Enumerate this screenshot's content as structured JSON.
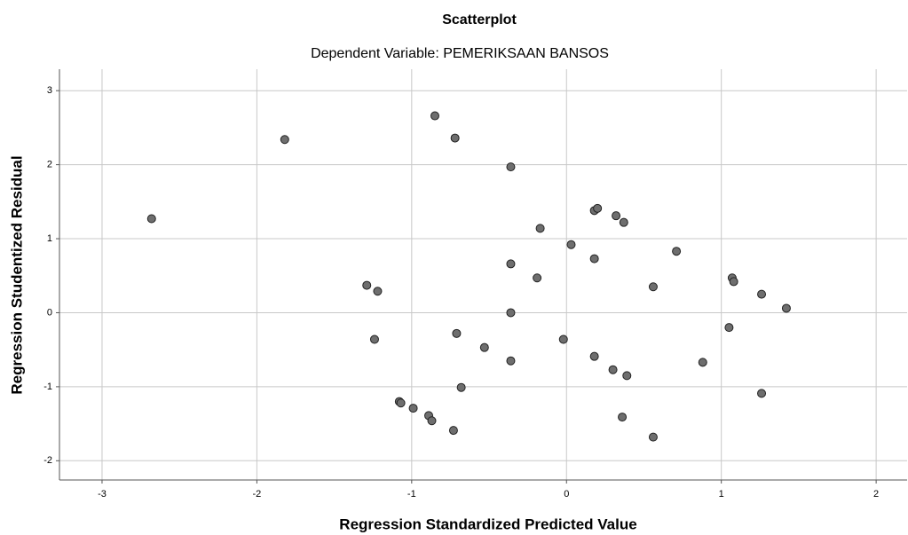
{
  "chart_data": {
    "type": "scatter",
    "title": "Scatterplot",
    "subtitle": "Dependent Variable: PEMERIKSAAN BANSOS",
    "x_label": "Regression Standardized Predicted Value",
    "y_label": "Regression Studentized Residual",
    "xlim": [
      -3.275,
      2.2
    ],
    "ylim": [
      -2.26,
      3.29
    ],
    "xticks": [
      -3,
      -2,
      -1,
      0,
      1,
      2
    ],
    "yticks": [
      -2,
      -1,
      0,
      1,
      2,
      3
    ],
    "grid": true,
    "color": "#6e6e6e",
    "x": [
      -2.68,
      -1.82,
      -0.85,
      -0.72,
      -0.36,
      0.18,
      0.2,
      0.32,
      0.37,
      -0.17,
      0.03,
      0.18,
      0.71,
      -0.36,
      -0.19,
      -1.29,
      -1.22,
      0.56,
      1.07,
      1.08,
      1.26,
      1.42,
      -0.36,
      -0.71,
      -0.02,
      -1.24,
      -0.53,
      -0.36,
      0.18,
      1.05,
      0.88,
      0.3,
      0.39,
      -0.68,
      1.26,
      -1.08,
      -1.07,
      -0.99,
      -0.89,
      -0.87,
      -0.73,
      0.36,
      0.56
    ],
    "values": [
      1.27,
      2.34,
      2.66,
      2.36,
      1.97,
      1.38,
      1.41,
      1.31,
      1.22,
      1.14,
      0.92,
      0.73,
      0.83,
      0.66,
      0.47,
      0.37,
      0.29,
      0.35,
      0.47,
      0.42,
      0.25,
      0.06,
      0.0,
      -0.28,
      -0.36,
      -0.36,
      -0.47,
      -0.65,
      -0.59,
      -0.2,
      -0.67,
      -0.77,
      -0.85,
      -1.01,
      -1.09,
      -1.2,
      -1.22,
      -1.29,
      -1.39,
      -1.46,
      -1.59,
      -1.41,
      -1.68
    ]
  }
}
